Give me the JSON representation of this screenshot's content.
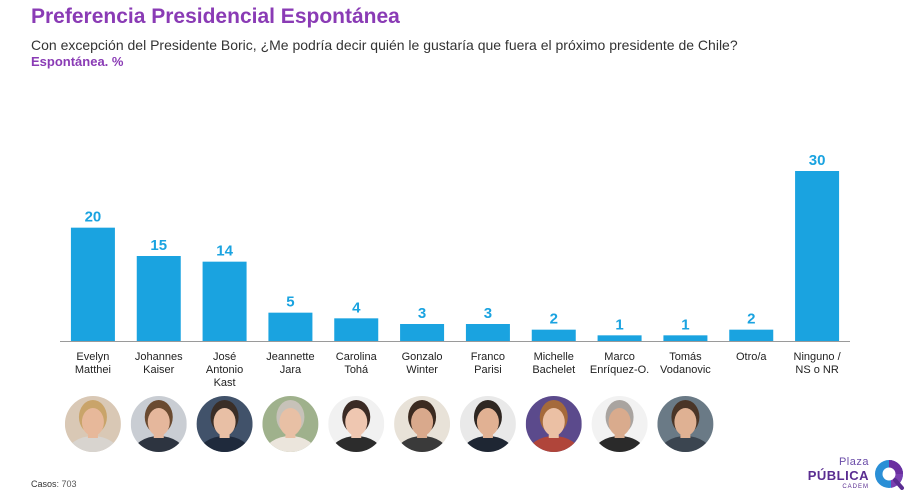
{
  "header": {
    "title": "Preferencia Presidencial Espontánea",
    "subtitle": "Con excepción del Presidente Boric, ¿Me podría decir quién le gustaría que fuera el próximo presidente de Chile?",
    "unit_label": "Espontánea. %"
  },
  "chart_data": {
    "type": "bar",
    "title": "Preferencia Presidencial Espontánea",
    "xlabel": "",
    "ylabel": "%",
    "ylim": [
      0,
      30
    ],
    "grid": false,
    "categories": [
      [
        "Evelyn",
        "Matthei"
      ],
      [
        "Johannes",
        "Kaiser"
      ],
      [
        "José",
        "Antonio",
        "Kast"
      ],
      [
        "Jeannette",
        "Jara"
      ],
      [
        "Carolina",
        "Tohá"
      ],
      [
        "Gonzalo",
        "Winter"
      ],
      [
        "Franco",
        "Parisi"
      ],
      [
        "Michelle",
        "Bachelet"
      ],
      [
        "Marco",
        "Enríquez-O."
      ],
      [
        "Tomás",
        "Vodanovic"
      ],
      [
        "Otro/a"
      ],
      [
        "Ninguno /",
        "NS o NR"
      ]
    ],
    "values": [
      20,
      15,
      14,
      5,
      4,
      3,
      3,
      2,
      1,
      1,
      2,
      30
    ],
    "bar_color": "#1aa3e0",
    "label_color": "#1aa3e0"
  },
  "portraits": [
    {
      "name": "Evelyn Matthei",
      "skin": "#e7b89a",
      "hair": "#c9a46a",
      "bg": "#d9c8b5",
      "suit": "#d8d4cf"
    },
    {
      "name": "Johannes Kaiser",
      "skin": "#e5b79c",
      "hair": "#6a4a30",
      "bg": "#c9cdd3",
      "suit": "#2d3440"
    },
    {
      "name": "José Antonio Kast",
      "skin": "#e8bfa5",
      "hair": "#3a2e27",
      "bg": "#41526a",
      "suit": "#1f2a3c"
    },
    {
      "name": "Jeannette Jara",
      "skin": "#e8c0a5",
      "hair": "#c7c2b9",
      "bg": "#9fb18c",
      "suit": "#ebe5dc"
    },
    {
      "name": "Carolina Tohá",
      "skin": "#efc7b1",
      "hair": "#3b2b25",
      "bg": "#f1f1f1",
      "suit": "#2c2c2c"
    },
    {
      "name": "Gonzalo Winter",
      "skin": "#d9a98c",
      "hair": "#3b2a20",
      "bg": "#e8e2d8",
      "suit": "#3a3a3a"
    },
    {
      "name": "Franco Parisi",
      "skin": "#e1b193",
      "hair": "#2f2722",
      "bg": "#e9e9e9",
      "suit": "#1e2633"
    },
    {
      "name": "Michelle Bachelet",
      "skin": "#ebc0a4",
      "hair": "#a56a3b",
      "bg": "#5b4a8c",
      "suit": "#b0453a"
    },
    {
      "name": "Marco Enríquez-O.",
      "skin": "#d9ab8d",
      "hair": "#a9a4a0",
      "bg": "#f2f2f2",
      "suit": "#2a2a2a"
    },
    {
      "name": "Tomás Vodanovic",
      "skin": "#dfb193",
      "hair": "#4a3527",
      "bg": "#6a7a86",
      "suit": "#3b4550"
    }
  ],
  "footer": {
    "cases_label": "Casos",
    "cases_value": ": 703"
  },
  "logo": {
    "line1": "Plaza",
    "line2": "PÚBLICA",
    "line3": "CADEM"
  }
}
